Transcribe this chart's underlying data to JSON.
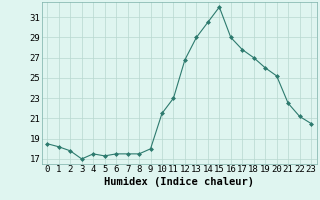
{
  "x": [
    0,
    1,
    2,
    3,
    4,
    5,
    6,
    7,
    8,
    9,
    10,
    11,
    12,
    13,
    14,
    15,
    16,
    17,
    18,
    19,
    20,
    21,
    22,
    23
  ],
  "y": [
    18.5,
    18.2,
    17.8,
    17.0,
    17.5,
    17.3,
    17.5,
    17.5,
    17.5,
    18.0,
    21.5,
    23.0,
    26.8,
    29.0,
    30.5,
    32.0,
    29.0,
    27.8,
    27.0,
    26.0,
    25.2,
    22.5,
    21.2,
    20.5
  ],
  "line_color": "#2d7a6e",
  "marker": "D",
  "marker_size": 2.0,
  "bg_color": "#dff5f0",
  "grid_color": "#b8d8d0",
  "xlabel": "Humidex (Indice chaleur)",
  "ylim": [
    16.5,
    32.5
  ],
  "xlim": [
    -0.5,
    23.5
  ],
  "yticks": [
    17,
    19,
    21,
    23,
    25,
    27,
    29,
    31
  ],
  "xticks": [
    0,
    1,
    2,
    3,
    4,
    5,
    6,
    7,
    8,
    9,
    10,
    11,
    12,
    13,
    14,
    15,
    16,
    17,
    18,
    19,
    20,
    21,
    22,
    23
  ],
  "tick_fontsize": 6.5,
  "xlabel_fontsize": 7.5
}
